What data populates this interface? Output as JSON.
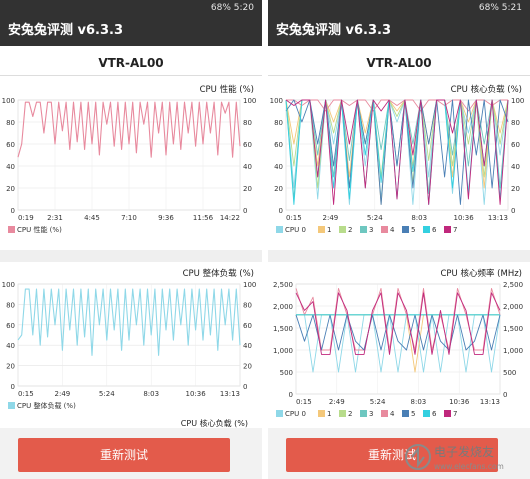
{
  "left": {
    "status": "68% 5:20",
    "title": "安兔兔评测 v6.3.3",
    "device": "VTR-AL00",
    "button": "重新测试",
    "charts": [
      {
        "id": "l1",
        "title": "CPU 性能 (%)",
        "x_ticks": [
          "0:19",
          "2:31",
          "4:45",
          "7:10",
          "9:36",
          "11:56",
          "14:22"
        ],
        "y_ticks": [
          "100",
          "80",
          "60",
          "40",
          "20",
          "0"
        ],
        "legend": [
          {
            "label": "CPU 性能 (%)",
            "color": "#e88a9e"
          }
        ],
        "colors": [
          "#e88a9e"
        ]
      },
      {
        "id": "l2",
        "title": "CPU 整体负载 (%)",
        "x_ticks": [
          "0:15",
          "2:49",
          "5:24",
          "8:03",
          "10:36",
          "13:13"
        ],
        "y_ticks": [
          "100",
          "80",
          "60",
          "40",
          "20",
          "0"
        ],
        "legend": [
          {
            "label": "CPU 整体负载 (%)",
            "color": "#8fd8e8"
          }
        ],
        "colors": [
          "#8fd8e8"
        ]
      }
    ],
    "partial_title": "CPU 核心负载 (%)"
  },
  "right": {
    "status": "68% 5:21",
    "title": "安兔兔评测 v6.3.3",
    "device": "VTR-AL00",
    "button": "重新测试",
    "charts": [
      {
        "id": "r1",
        "title": "CPU 核心负载 (%)",
        "x_ticks": [
          "0:15",
          "2:49",
          "5:24",
          "8:03",
          "10:36",
          "13:13"
        ],
        "y_ticks": [
          "100",
          "80",
          "60",
          "40",
          "20",
          "0"
        ],
        "legend": [
          {
            "label": "CPU 0",
            "color": "#8fd8e8"
          },
          {
            "label": "1",
            "color": "#f4c87a"
          },
          {
            "label": "2",
            "color": "#b8dc8c"
          },
          {
            "label": "3",
            "color": "#6ec7c0"
          },
          {
            "label": "4",
            "color": "#e88a9e"
          },
          {
            "label": "5",
            "color": "#4a7fb5"
          },
          {
            "label": "6",
            "color": "#34d0e0"
          },
          {
            "label": "7",
            "color": "#c0287c"
          }
        ],
        "colors": [
          "#8fd8e8",
          "#f4c87a",
          "#b8dc8c",
          "#6ec7c0",
          "#e88a9e",
          "#4a7fb5",
          "#34d0e0",
          "#c0287c"
        ]
      },
      {
        "id": "r2",
        "title": "CPU 核心频率 (MHz)",
        "x_ticks": [
          "0:15",
          "2:49",
          "5:24",
          "8:03",
          "10:36",
          "13:13"
        ],
        "y_ticks": [
          "2,500",
          "2,000",
          "1,500",
          "1,000",
          "500",
          "0"
        ],
        "legend": [
          {
            "label": "CPU 0",
            "color": "#8fd8e8"
          },
          {
            "label": "1",
            "color": "#f4c87a"
          },
          {
            "label": "2",
            "color": "#b8dc8c"
          },
          {
            "label": "3",
            "color": "#6ec7c0"
          },
          {
            "label": "4",
            "color": "#e88a9e"
          },
          {
            "label": "5",
            "color": "#4a7fb5"
          },
          {
            "label": "6",
            "color": "#34d0e0"
          },
          {
            "label": "7",
            "color": "#c0287c"
          }
        ],
        "colors": [
          "#8fd8e8",
          "#f4c87a",
          "#b8dc8c",
          "#6ec7c0",
          "#e88a9e",
          "#4a7fb5",
          "#34d0e0",
          "#c0287c"
        ]
      }
    ]
  },
  "watermark": {
    "text": "电子发烧友",
    "url": "www.elecfans.com"
  },
  "chart_data": [
    {
      "type": "line",
      "title": "CPU 性能 (%)",
      "xlabel": "",
      "ylabel": "",
      "x_ticks": [
        "0:19",
        "2:31",
        "4:45",
        "7:10",
        "9:36",
        "11:56",
        "14:22"
      ],
      "ylim": [
        0,
        100
      ],
      "series": [
        {
          "name": "CPU 性能 (%)",
          "values": [
            48,
            60,
            98,
            98,
            85,
            98,
            98,
            70,
            98,
            98,
            60,
            98,
            72,
            98,
            55,
            98,
            62,
            98,
            55,
            98,
            60,
            98,
            50,
            98,
            78,
            98,
            58,
            98,
            55,
            98,
            60,
            98,
            52,
            98,
            78,
            98,
            48,
            98,
            70,
            98,
            50,
            98,
            60,
            98,
            55,
            98,
            70,
            98,
            58,
            98,
            60,
            98,
            70,
            98,
            50,
            98,
            88,
            98,
            48,
            98,
            58
          ]
        }
      ]
    },
    {
      "type": "line",
      "title": "CPU 整体负载 (%)",
      "xlabel": "",
      "ylabel": "",
      "x_ticks": [
        "0:15",
        "2:49",
        "5:24",
        "8:03",
        "10:36",
        "13:13"
      ],
      "ylim": [
        0,
        100
      ],
      "series": [
        {
          "name": "CPU 整体负载 (%)",
          "values": [
            45,
            50,
            95,
            95,
            50,
            95,
            40,
            95,
            48,
            95,
            60,
            95,
            35,
            95,
            55,
            95,
            40,
            95,
            48,
            95,
            30,
            95,
            60,
            95,
            45,
            95,
            55,
            95,
            35,
            95,
            45,
            95,
            60,
            95,
            40,
            95,
            50,
            95,
            30,
            95,
            55,
            95,
            45,
            95,
            60,
            95,
            40,
            95,
            55,
            95,
            45,
            95,
            50,
            95,
            35,
            95,
            60,
            95,
            45,
            95,
            40
          ]
        }
      ]
    },
    {
      "type": "line",
      "title": "CPU 核心负载 (%)",
      "xlabel": "",
      "ylabel": "",
      "x_ticks": [
        "0:15",
        "2:49",
        "5:24",
        "8:03",
        "10:36",
        "13:13"
      ],
      "ylim": [
        0,
        100
      ],
      "series": [
        {
          "name": "CPU 0",
          "values": [
            100,
            20,
            100,
            100,
            10,
            100,
            60,
            100,
            5,
            100,
            40,
            100,
            10,
            100,
            80,
            100,
            5,
            100,
            30,
            100,
            100,
            15,
            100,
            70,
            100,
            5,
            100,
            50,
            100
          ]
        },
        {
          "name": "1",
          "values": [
            100,
            60,
            100,
            100,
            40,
            100,
            80,
            100,
            30,
            100,
            70,
            100,
            5,
            100,
            90,
            100,
            40,
            100,
            60,
            100,
            100,
            30,
            100,
            80,
            100,
            20,
            100,
            70,
            100
          ]
        },
        {
          "name": "2",
          "values": [
            100,
            40,
            100,
            100,
            20,
            100,
            70,
            100,
            20,
            100,
            60,
            100,
            30,
            100,
            85,
            100,
            25,
            100,
            45,
            100,
            100,
            40,
            100,
            60,
            100,
            30,
            100,
            60,
            100
          ]
        },
        {
          "name": "3",
          "values": [
            100,
            10,
            100,
            100,
            50,
            100,
            30,
            100,
            45,
            100,
            20,
            100,
            55,
            100,
            40,
            100,
            60,
            100,
            15,
            100,
            100,
            50,
            100,
            40,
            100,
            60,
            100,
            20,
            100
          ]
        },
        {
          "name": "4",
          "values": [
            100,
            100,
            95,
            100,
            100,
            90,
            100,
            100,
            95,
            100,
            100,
            90,
            100,
            100,
            95,
            100,
            100,
            90,
            100,
            100,
            95,
            100,
            100,
            90,
            100,
            100,
            95,
            100,
            100
          ]
        },
        {
          "name": "5",
          "values": [
            90,
            100,
            80,
            100,
            60,
            100,
            40,
            100,
            20,
            100,
            60,
            100,
            5,
            100,
            40,
            100,
            20,
            100,
            60,
            100,
            30,
            100,
            5,
            100,
            50,
            100,
            20,
            100,
            80
          ]
        },
        {
          "name": "6",
          "values": [
            100,
            5,
            100,
            100,
            30,
            100,
            20,
            100,
            10,
            100,
            50,
            100,
            25,
            100,
            10,
            100,
            35,
            100,
            5,
            100,
            100,
            20,
            100,
            15,
            100,
            40,
            100,
            10,
            100
          ]
        },
        {
          "name": "7",
          "values": [
            100,
            95,
            100,
            100,
            30,
            100,
            5,
            100,
            60,
            100,
            20,
            100,
            90,
            100,
            10,
            100,
            50,
            100,
            5,
            100,
            100,
            70,
            100,
            10,
            100,
            40,
            100,
            5,
            100
          ]
        }
      ]
    },
    {
      "type": "line",
      "title": "CPU 核心频率 (MHz)",
      "xlabel": "",
      "ylabel": "",
      "x_ticks": [
        "0:15",
        "2:49",
        "5:24",
        "8:03",
        "10:36",
        "13:13"
      ],
      "ylim": [
        0,
        2500
      ],
      "series": [
        {
          "name": "CPU 0",
          "values": [
            1800,
            1800,
            500,
            1800,
            1800,
            500,
            1800,
            500,
            1800,
            1800,
            500,
            1800,
            500,
            1800,
            1800,
            500,
            1800,
            500,
            1800,
            1800,
            500,
            1800,
            1800,
            500,
            1800
          ]
        },
        {
          "name": "1",
          "values": [
            1800,
            1800,
            1800,
            1800,
            1800,
            1800,
            1800,
            1800,
            1800,
            1800,
            1800,
            1800,
            1800,
            1800,
            500,
            1800,
            1800,
            1800,
            1800,
            1800,
            1800,
            1800,
            1800,
            1800,
            1800
          ]
        },
        {
          "name": "2",
          "values": [
            1800,
            1800,
            1800,
            1800,
            1800,
            1800,
            1800,
            1800,
            1800,
            1800,
            1800,
            1800,
            1800,
            1800,
            1800,
            1800,
            1800,
            1800,
            1800,
            1800,
            1800,
            1800,
            1800,
            1800,
            1800
          ]
        },
        {
          "name": "3",
          "values": [
            1800,
            1800,
            1800,
            1800,
            1800,
            1800,
            1800,
            1800,
            1800,
            1800,
            1800,
            1800,
            1800,
            1800,
            1800,
            1800,
            1800,
            1800,
            1800,
            1800,
            1800,
            1800,
            1800,
            1800,
            1800
          ]
        },
        {
          "name": "4",
          "values": [
            2400,
            1800,
            2200,
            1000,
            1000,
            2400,
            1800,
            1000,
            1000,
            1800,
            2400,
            1000,
            2400,
            1800,
            1000,
            2400,
            1000,
            1800,
            1000,
            2400,
            1800,
            1000,
            1000,
            2400,
            1800
          ]
        },
        {
          "name": "5",
          "values": [
            1800,
            1200,
            1800,
            1000,
            1800,
            1000,
            1800,
            1200,
            1000,
            1800,
            1000,
            1800,
            1200,
            1000,
            1800,
            1000,
            1800,
            1200,
            1000,
            1800,
            1000,
            1200,
            1800,
            1000,
            1800
          ]
        },
        {
          "name": "6",
          "values": [
            1800,
            1800,
            1800,
            1800,
            1800,
            1800,
            1800,
            1800,
            1800,
            1800,
            1800,
            1800,
            1800,
            1800,
            1800,
            1800,
            1800,
            1800,
            1800,
            1800,
            1800,
            1800,
            1800,
            1800,
            1800
          ]
        },
        {
          "name": "7",
          "values": [
            2300,
            1900,
            2100,
            900,
            900,
            2300,
            1900,
            900,
            900,
            1900,
            2300,
            900,
            2300,
            1900,
            900,
            2300,
            900,
            1900,
            900,
            2300,
            1900,
            900,
            900,
            2300,
            1900
          ]
        }
      ]
    }
  ]
}
